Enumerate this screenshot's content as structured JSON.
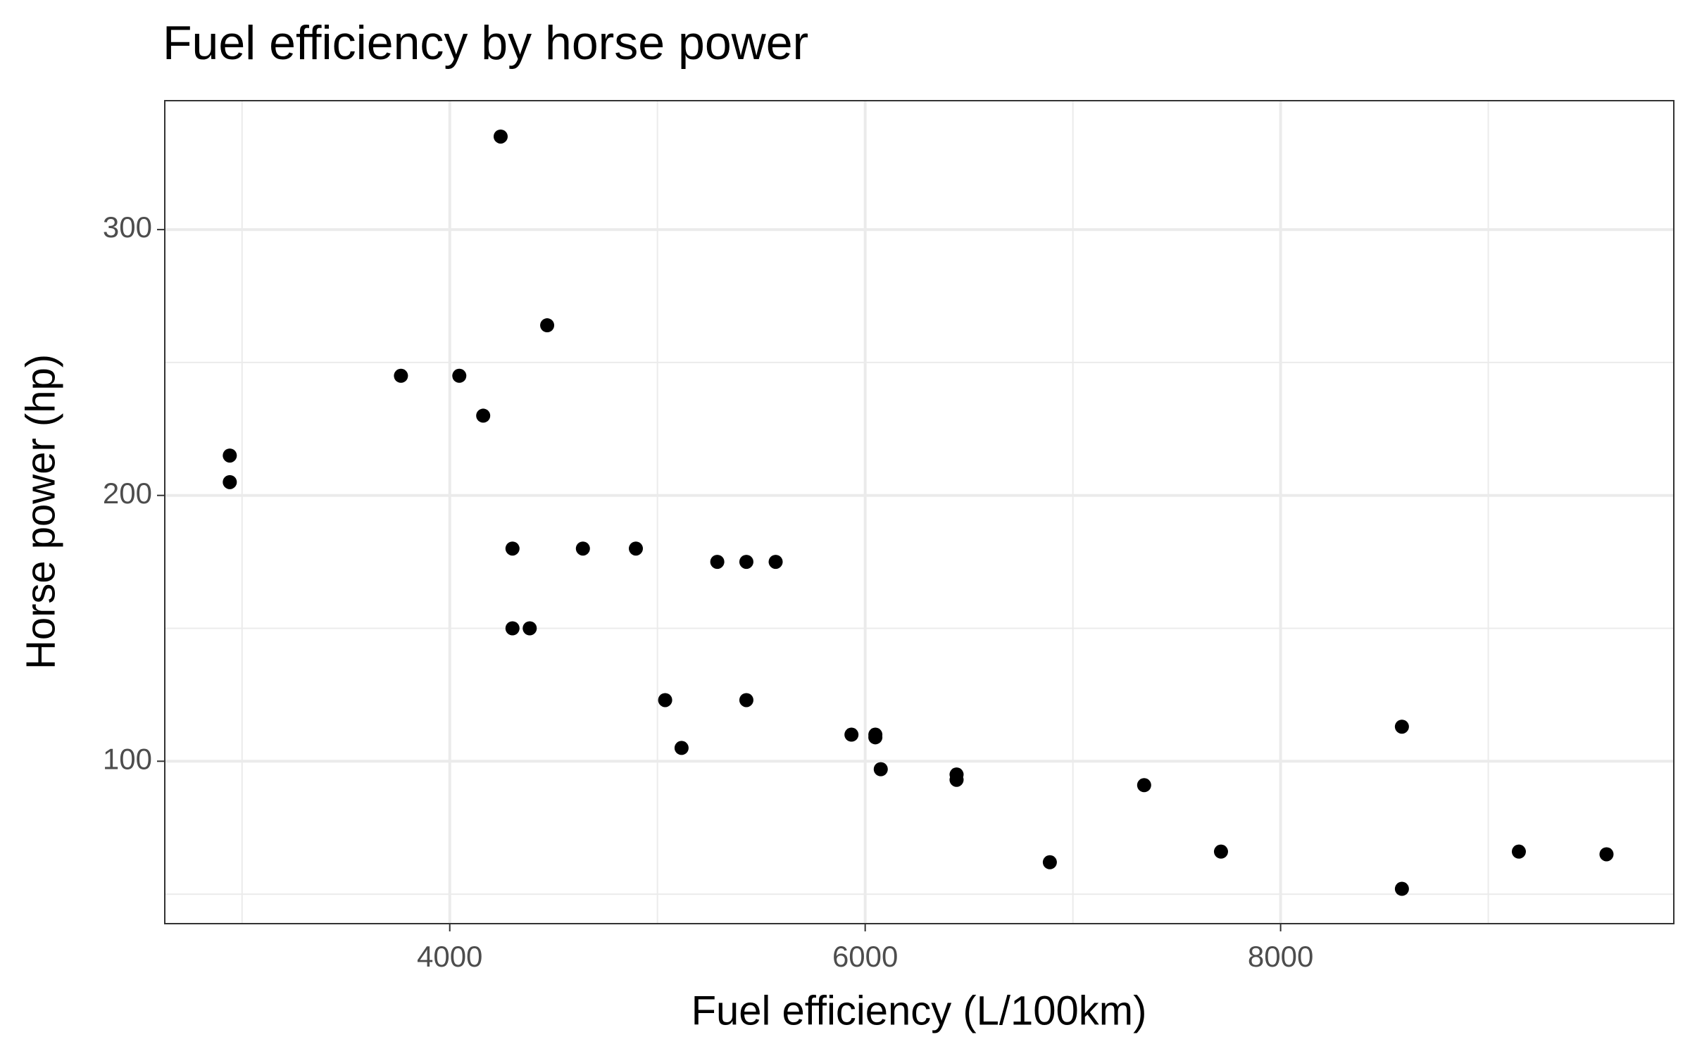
{
  "chart_data": {
    "type": "scatter",
    "title": "Fuel efficiency by horse power",
    "xlabel": "Fuel efficiency (L/100km)",
    "ylabel": "Horse power (hp)",
    "x": [
      2941,
      2941,
      3765,
      4046,
      4161,
      4245,
      4469,
      4302,
      4302,
      4385,
      4641,
      4896,
      5037,
      5116,
      5288,
      5428,
      5569,
      5428,
      5934,
      6049,
      6049,
      6075,
      6440,
      6440,
      6889,
      7343,
      7713,
      8584,
      8584,
      9147,
      9569
    ],
    "values": [
      215,
      205,
      245,
      245,
      230,
      335,
      264,
      180,
      150,
      150,
      180,
      180,
      123,
      105,
      175,
      175,
      175,
      123,
      110,
      110,
      109,
      97,
      95,
      93,
      62,
      91,
      66,
      113,
      52,
      66,
      65
    ],
    "color": "#000000",
    "xlim": [
      2628,
      9893
    ],
    "xticks": [
      4000,
      6000,
      8000
    ],
    "xminor": [
      3000,
      5000,
      7000,
      9000
    ],
    "ylim": [
      38.9,
      348.5
    ],
    "yticks": [
      100,
      200,
      300
    ],
    "yminor": [
      50,
      150,
      250
    ],
    "grid": true
  }
}
